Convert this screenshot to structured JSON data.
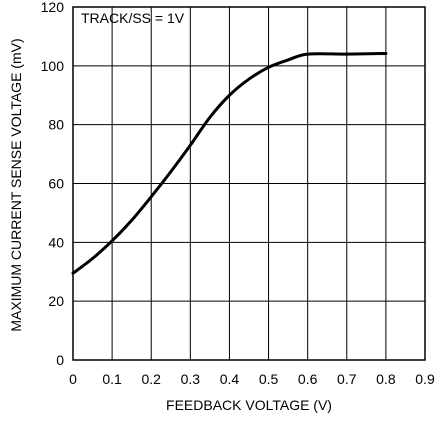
{
  "chart_data": {
    "type": "line",
    "title": "",
    "xlabel": "FEEDBACK VOLTAGE (V)",
    "ylabel": "MAXIMUM CURRENT SENSE VOLTAGE (mV)",
    "xlim": [
      0,
      0.9
    ],
    "ylim": [
      0,
      120
    ],
    "xticks": [
      "0",
      "0.1",
      "0.2",
      "0.3",
      "0.4",
      "0.5",
      "0.6",
      "0.7",
      "0.8",
      "0.9"
    ],
    "yticks": [
      "0",
      "20",
      "40",
      "60",
      "80",
      "100",
      "120"
    ],
    "grid": true,
    "annotation": "TRACK/SS = 1V",
    "series": [
      {
        "x": [
          0,
          0.05,
          0.1,
          0.15,
          0.2,
          0.25,
          0.3,
          0.35,
          0.4,
          0.45,
          0.5,
          0.55,
          0.6,
          0.7,
          0.8
        ],
        "y": [
          29.5,
          34.5,
          40.5,
          47.5,
          55.5,
          64,
          73,
          82.5,
          90,
          95.5,
          99.5,
          102,
          104,
          104,
          104.2
        ]
      }
    ]
  }
}
